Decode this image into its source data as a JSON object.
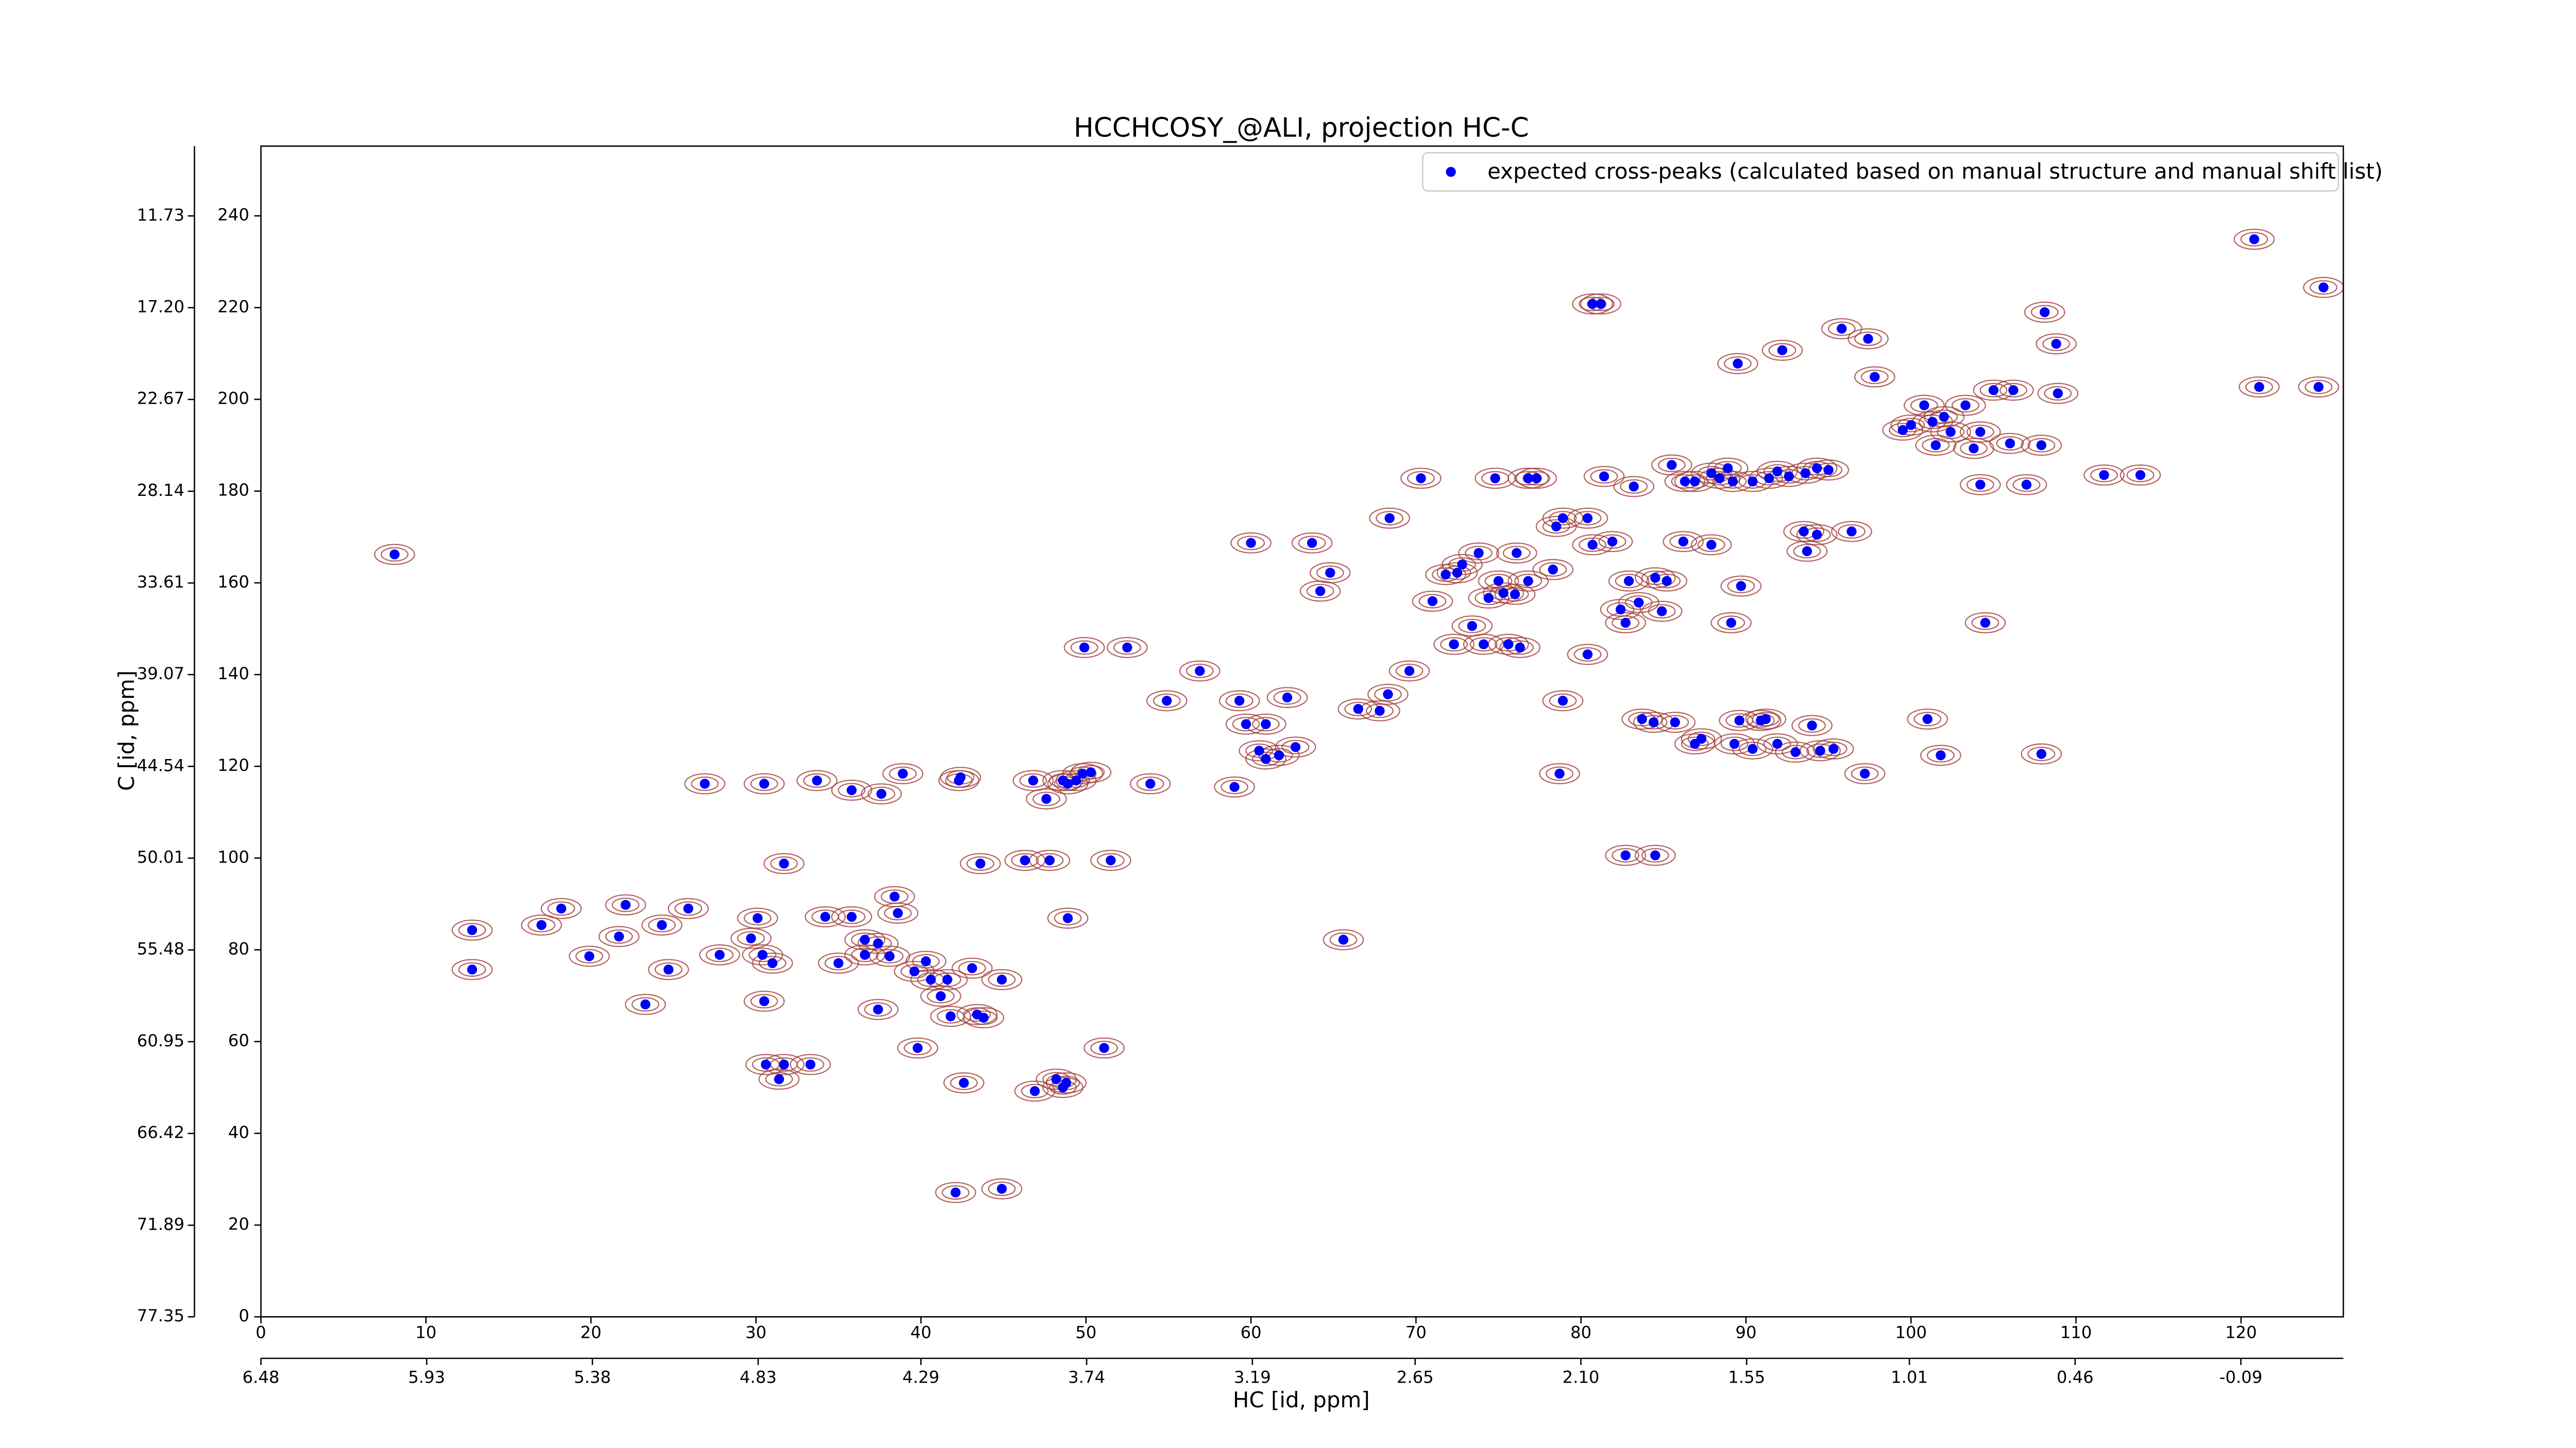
{
  "chart_data": {
    "type": "scatter",
    "title": "HCCHCOSY_@ALI, projection HC-C",
    "xlabel": "HC [id, ppm]",
    "ylabel": "C [id, ppm]",
    "legend": "upper right",
    "contour_color": "#a0403a",
    "xlim": [
      0,
      126.2
    ],
    "ylim": [
      0,
      255.2
    ],
    "xticks": [
      0,
      10,
      20,
      30,
      40,
      50,
      60,
      70,
      80,
      90,
      100,
      110,
      120
    ],
    "yticks": [
      0,
      20,
      40,
      60,
      80,
      100,
      120,
      140,
      160,
      180,
      200,
      220,
      240
    ],
    "x2lim": [
      6.48,
      -0.43
    ],
    "x2ticks": [
      6.48,
      5.93,
      5.38,
      4.83,
      4.29,
      3.74,
      3.19,
      2.65,
      {
        "value": 2.1,
        "label": "2.10"
      },
      1.55,
      1.01,
      0.46,
      -0.09
    ],
    "y2lim": [
      77.35,
      7.57
    ],
    "y2ticks": [
      77.35,
      71.89,
      66.42,
      60.95,
      55.48,
      50.01,
      44.54,
      39.07,
      33.61,
      28.14,
      22.67,
      {
        "value": 17.2,
        "label": "17.20"
      },
      11.73
    ],
    "series": [
      {
        "name": "expected cross-peaks (calculated based on manual structure and manual shift list)",
        "color": "#0000ff",
        "x": [
          8.1,
          12.8,
          12.8,
          17.0,
          18.2,
          19.9,
          21.7,
          22.1,
          23.3,
          24.3,
          24.7,
          25.9,
          26.9,
          30.5,
          27.8,
          29.7,
          30.1,
          30.4,
          30.5,
          31.0,
          30.6,
          31.7,
          33.3,
          31.4,
          31.7,
          33.7,
          35.8,
          34.2,
          35.8,
          35.0,
          36.6,
          37.4,
          36.6,
          37.4,
          38.4,
          38.6,
          38.1,
          38.9,
          37.6,
          39.6,
          39.8,
          40.3,
          40.6,
          41.2,
          41.6,
          41.8,
          42.3,
          42.4,
          43.4,
          43.8,
          43.6,
          42.6,
          43.1,
          44.9,
          42.1,
          44.9,
          46.8,
          47.6,
          48.9,
          49.4,
          49.8,
          50.3,
          48.6,
          46.3,
          47.8,
          48.9,
          51.5,
          53.9,
          46.9,
          48.2,
          48.6,
          48.8,
          51.1,
          49.9,
          52.5,
          54.9,
          56.9,
          59.0,
          59.3,
          59.7,
          60.9,
          60.5,
          60.9,
          61.7,
          62.2,
          62.7,
          60.0,
          63.7,
          64.2,
          64.8,
          65.6,
          66.5,
          67.8,
          68.3,
          69.6,
          68.4,
          70.3,
          71.0,
          71.8,
          72.5,
          72.8,
          73.8,
          74.4,
          75.0,
          75.3,
          76.0,
          76.1,
          76.8,
          73.4,
          72.3,
          74.1,
          75.6,
          76.3,
          78.3,
          78.5,
          78.9,
          80.4,
          80.7,
          81.9,
          82.4,
          82.9,
          83.5,
          84.5,
          84.9,
          85.2,
          86.2,
          87.9,
          89.7,
          89.1,
          82.7,
          80.4,
          78.9,
          78.7,
          74.8,
          76.8,
          77.3,
          81.4,
          83.2,
          85.5,
          86.3,
          86.9,
          87.9,
          88.4,
          88.9,
          89.2,
          90.4,
          91.4,
          91.9,
          92.6,
          93.6,
          94.3,
          95.0,
          90.4,
          91.2,
          91.9,
          93.0,
          94.0,
          94.5,
          95.3,
          97.2,
          93.5,
          93.7,
          94.3,
          96.4,
          80.7,
          81.2,
          82.7,
          84.5,
          83.7,
          84.4,
          85.7,
          86.9,
          89.6,
          90.9,
          87.3,
          89.3,
          89.5,
          92.2,
          95.8,
          97.4,
          97.8,
          99.5,
          100.0,
          100.8,
          101.3,
          101.5,
          102.0,
          102.4,
          103.3,
          103.8,
          104.2,
          105.0,
          106.0,
          106.2,
          107.9,
          108.9,
          108.1,
          108.8,
          101.0,
          101.8,
          104.5,
          107.9,
          104.2,
          107.0,
          111.7,
          113.9,
          120.8,
          125.0,
          121.1,
          124.7
        ],
        "values": [
          166.2,
          84.3,
          75.7,
          85.4,
          89.0,
          78.6,
          82.9,
          89.8,
          68.1,
          85.4,
          75.7,
          89.0,
          116.2,
          116.2,
          78.9,
          82.5,
          86.9,
          78.9,
          68.8,
          77.1,
          55.0,
          55.0,
          55.0,
          51.8,
          98.8,
          116.9,
          114.8,
          87.2,
          87.2,
          77.1,
          82.2,
          81.4,
          78.9,
          67.0,
          91.6,
          88.0,
          78.6,
          118.4,
          114.0,
          75.3,
          58.6,
          77.5,
          73.5,
          69.9,
          73.5,
          65.5,
          116.9,
          117.6,
          65.9,
          65.2,
          98.8,
          51.0,
          76.0,
          73.5,
          27.1,
          27.9,
          116.9,
          112.9,
          116.2,
          116.9,
          118.4,
          118.7,
          116.9,
          99.5,
          99.5,
          86.9,
          99.5,
          116.2,
          49.2,
          51.8,
          50.0,
          51.0,
          58.6,
          145.9,
          145.9,
          134.3,
          140.8,
          115.5,
          134.3,
          129.2,
          129.2,
          123.4,
          121.6,
          122.4,
          135.0,
          124.2,
          168.7,
          168.7,
          158.2,
          162.2,
          82.2,
          132.5,
          132.1,
          135.7,
          140.8,
          174.1,
          182.8,
          156.0,
          161.8,
          162.2,
          164.0,
          166.5,
          156.7,
          160.4,
          157.8,
          157.5,
          166.5,
          160.4,
          150.6,
          146.6,
          146.6,
          146.6,
          145.9,
          162.9,
          172.3,
          174.1,
          174.1,
          168.3,
          169.0,
          154.2,
          160.4,
          155.7,
          161.1,
          153.8,
          160.4,
          169.0,
          168.3,
          159.3,
          151.3,
          151.3,
          144.4,
          134.3,
          118.4,
          182.8,
          182.8,
          182.8,
          183.2,
          181.0,
          185.7,
          182.1,
          182.1,
          183.9,
          182.8,
          185.0,
          182.1,
          182.1,
          182.8,
          184.3,
          183.2,
          183.9,
          185.0,
          184.6,
          123.8,
          130.3,
          124.9,
          123.1,
          128.9,
          123.4,
          123.8,
          118.4,
          171.2,
          166.9,
          170.5,
          171.2,
          220.8,
          220.8,
          100.6,
          100.6,
          130.3,
          129.6,
          129.6,
          124.9,
          130.0,
          130.0,
          126.0,
          124.9,
          207.8,
          210.7,
          215.4,
          213.2,
          204.9,
          193.3,
          194.4,
          198.7,
          195.1,
          190.0,
          196.2,
          192.9,
          198.7,
          189.3,
          192.9,
          202.0,
          190.4,
          202.0,
          190.0,
          201.3,
          219.0,
          212.1,
          130.3,
          122.4,
          151.3,
          122.7,
          181.4,
          181.4,
          183.5,
          183.5,
          234.9,
          224.4,
          202.7,
          202.7
        ]
      }
    ]
  }
}
